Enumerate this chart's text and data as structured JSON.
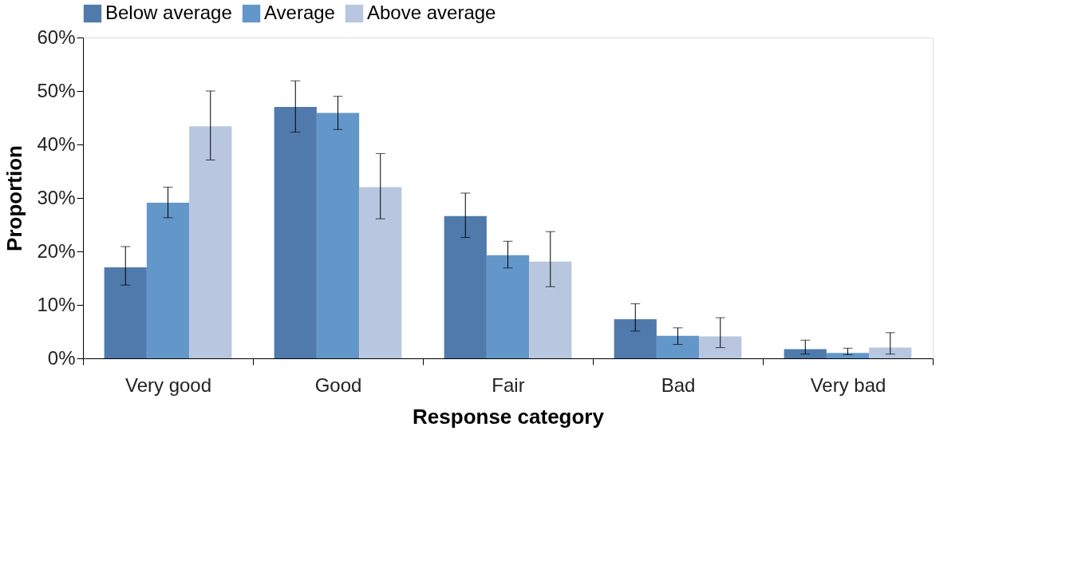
{
  "chart_data": {
    "type": "bar",
    "xlabel": "Response category",
    "ylabel": "Proportion",
    "categories": [
      "Very good",
      "Good",
      "Fair",
      "Bad",
      "Very bad"
    ],
    "series": [
      {
        "name": "Below average",
        "color": "#4f7aab",
        "values": [
          17.0,
          47.0,
          26.6,
          7.3,
          1.7
        ],
        "errors": [
          [
            13.7,
            20.9
          ],
          [
            42.3,
            51.9
          ],
          [
            22.6,
            30.9
          ],
          [
            5.1,
            10.2
          ],
          [
            0.8,
            3.4
          ]
        ]
      },
      {
        "name": "Average",
        "color": "#6497c9",
        "values": [
          29.1,
          45.9,
          19.3,
          4.2,
          1.0
        ],
        "errors": [
          [
            26.3,
            32.0
          ],
          [
            42.8,
            49.0
          ],
          [
            16.9,
            21.9
          ],
          [
            2.6,
            5.7
          ],
          [
            0.7,
            1.9
          ]
        ]
      },
      {
        "name": "Above average",
        "color": "#b8c7df",
        "values": [
          43.4,
          32.0,
          18.1,
          4.1,
          2.0
        ],
        "errors": [
          [
            37.1,
            50.0
          ],
          [
            26.1,
            38.3
          ],
          [
            13.4,
            23.7
          ],
          [
            2.0,
            7.6
          ],
          [
            0.8,
            4.8
          ]
        ]
      }
    ],
    "ylim": [
      0,
      60
    ],
    "yticks": [
      {
        "value": 0,
        "label": "0%"
      },
      {
        "value": 10,
        "label": "10%"
      },
      {
        "value": 20,
        "label": "20%"
      },
      {
        "value": 30,
        "label": "30%"
      },
      {
        "value": 40,
        "label": "40%"
      },
      {
        "value": 50,
        "label": "50%"
      },
      {
        "value": 60,
        "label": "60%"
      }
    ],
    "grid": false,
    "legend": "top"
  }
}
